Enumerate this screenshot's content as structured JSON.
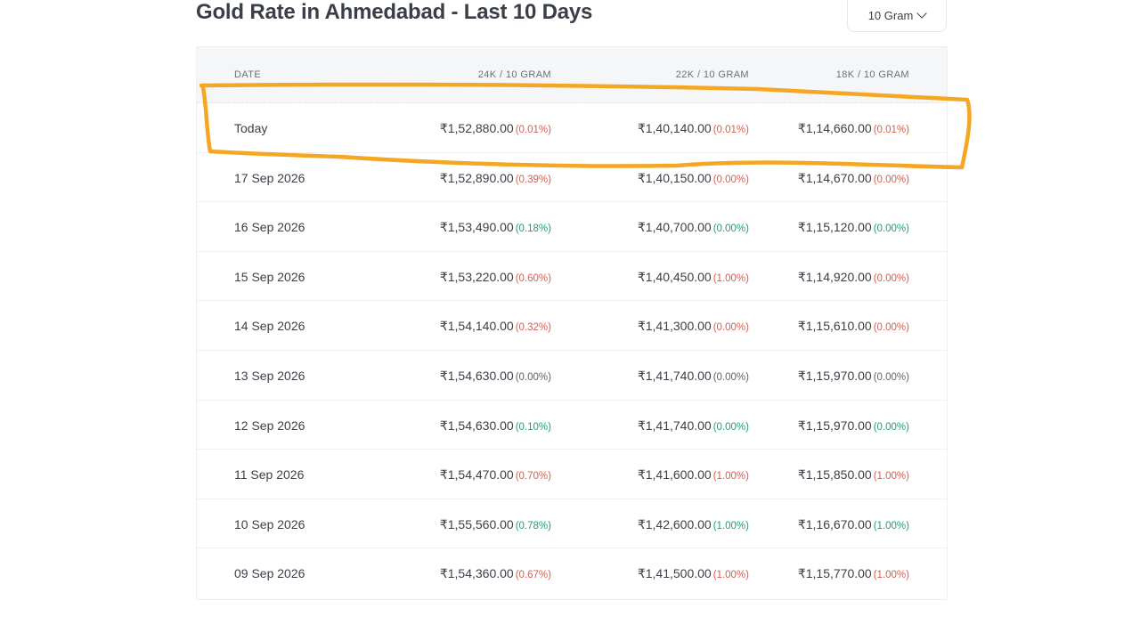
{
  "page": {
    "title": "Gold Rate in Ahmedabad - Last 10 Days",
    "unit_selector": {
      "value": "10 Gram",
      "icon": "chevron-down-icon"
    }
  },
  "table": {
    "headers": {
      "date": "DATE",
      "k24": "24K / 10 GRAM",
      "k22": "22K / 10 GRAM",
      "k18": "18K / 10 GRAM"
    },
    "rows": [
      {
        "date": "Today",
        "k24": {
          "price": "₹1,52,880.00",
          "change": "(0.01%)",
          "trend": "down"
        },
        "k22": {
          "price": "₹1,40,140.00",
          "change": "(0.01%)",
          "trend": "down"
        },
        "k18": {
          "price": "₹1,14,660.00",
          "change": "(0.01%)",
          "trend": "down"
        }
      },
      {
        "date": "17 Sep 2026",
        "k24": {
          "price": "₹1,52,890.00",
          "change": "(0.39%)",
          "trend": "down"
        },
        "k22": {
          "price": "₹1,40,150.00",
          "change": "(0.00%)",
          "trend": "down"
        },
        "k18": {
          "price": "₹1,14,670.00",
          "change": "(0.00%)",
          "trend": "down"
        }
      },
      {
        "date": "16 Sep 2026",
        "k24": {
          "price": "₹1,53,490.00",
          "change": "(0.18%)",
          "trend": "up"
        },
        "k22": {
          "price": "₹1,40,700.00",
          "change": "(0.00%)",
          "trend": "up"
        },
        "k18": {
          "price": "₹1,15,120.00",
          "change": "(0.00%)",
          "trend": "up"
        }
      },
      {
        "date": "15 Sep 2026",
        "k24": {
          "price": "₹1,53,220.00",
          "change": "(0.60%)",
          "trend": "down"
        },
        "k22": {
          "price": "₹1,40,450.00",
          "change": "(1.00%)",
          "trend": "down"
        },
        "k18": {
          "price": "₹1,14,920.00",
          "change": "(0.00%)",
          "trend": "down"
        }
      },
      {
        "date": "14 Sep 2026",
        "k24": {
          "price": "₹1,54,140.00",
          "change": "(0.32%)",
          "trend": "down"
        },
        "k22": {
          "price": "₹1,41,300.00",
          "change": "(0.00%)",
          "trend": "down"
        },
        "k18": {
          "price": "₹1,15,610.00",
          "change": "(0.00%)",
          "trend": "down"
        }
      },
      {
        "date": "13 Sep 2026",
        "k24": {
          "price": "₹1,54,630.00",
          "change": "(0.00%)",
          "trend": "flat"
        },
        "k22": {
          "price": "₹1,41,740.00",
          "change": "(0.00%)",
          "trend": "flat"
        },
        "k18": {
          "price": "₹1,15,970.00",
          "change": "(0.00%)",
          "trend": "flat"
        }
      },
      {
        "date": "12 Sep 2026",
        "k24": {
          "price": "₹1,54,630.00",
          "change": "(0.10%)",
          "trend": "up"
        },
        "k22": {
          "price": "₹1,41,740.00",
          "change": "(0.00%)",
          "trend": "up"
        },
        "k18": {
          "price": "₹1,15,970.00",
          "change": "(0.00%)",
          "trend": "up"
        }
      },
      {
        "date": "11 Sep 2026",
        "k24": {
          "price": "₹1,54,470.00",
          "change": "(0.70%)",
          "trend": "down"
        },
        "k22": {
          "price": "₹1,41,600.00",
          "change": "(1.00%)",
          "trend": "down"
        },
        "k18": {
          "price": "₹1,15,850.00",
          "change": "(1.00%)",
          "trend": "down"
        }
      },
      {
        "date": "10 Sep 2026",
        "k24": {
          "price": "₹1,55,560.00",
          "change": "(0.78%)",
          "trend": "up"
        },
        "k22": {
          "price": "₹1,42,600.00",
          "change": "(1.00%)",
          "trend": "up"
        },
        "k18": {
          "price": "₹1,16,670.00",
          "change": "(1.00%)",
          "trend": "up"
        }
      },
      {
        "date": "09 Sep 2026",
        "k24": {
          "price": "₹1,54,360.00",
          "change": "(0.67%)",
          "trend": "down"
        },
        "k22": {
          "price": "₹1,41,500.00",
          "change": "(1.00%)",
          "trend": "down"
        },
        "k18": {
          "price": "₹1,15,770.00",
          "change": "(1.00%)",
          "trend": "down"
        }
      }
    ]
  },
  "colors": {
    "down": "#e05a47",
    "up": "#14a37f",
    "flat": "#5e636b",
    "highlight_stroke": "#f5a623"
  }
}
